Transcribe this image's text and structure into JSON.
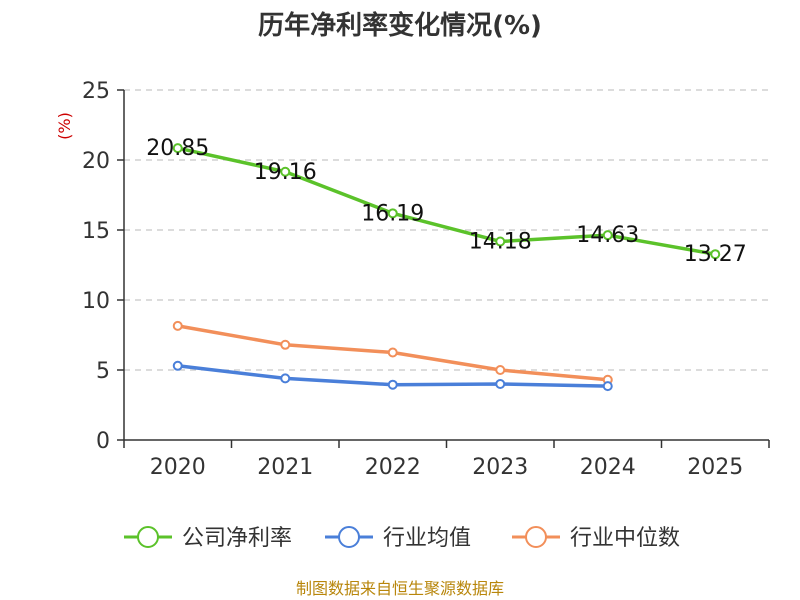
{
  "chart_data": {
    "type": "line",
    "title": "历年净利率变化情况(%)",
    "ylabel": "(%)",
    "xlabel": "",
    "categories": [
      "2020",
      "2021",
      "2022",
      "2023",
      "2024",
      "2025"
    ],
    "ylim": [
      0,
      25
    ],
    "yticks": [
      0,
      5,
      10,
      15,
      20,
      25
    ],
    "grid": true,
    "legend_position": "bottom",
    "series": [
      {
        "name": "公司净利率",
        "color": "#5bc22a",
        "values": [
          20.85,
          19.16,
          16.19,
          14.18,
          14.63,
          13.27
        ],
        "labels": [
          "20.85",
          "19.16",
          "16.19",
          "14.18",
          "14.63",
          "13.27"
        ]
      },
      {
        "name": "行业均值",
        "color": "#4a7fd9",
        "values": [
          5.3,
          4.4,
          3.95,
          4.0,
          3.85,
          null
        ]
      },
      {
        "name": "行业中位数",
        "color": "#f28f5a",
        "values": [
          8.15,
          6.8,
          6.25,
          5.0,
          4.3,
          null
        ]
      }
    ],
    "source": "制图数据来自恒生聚源数据库"
  }
}
